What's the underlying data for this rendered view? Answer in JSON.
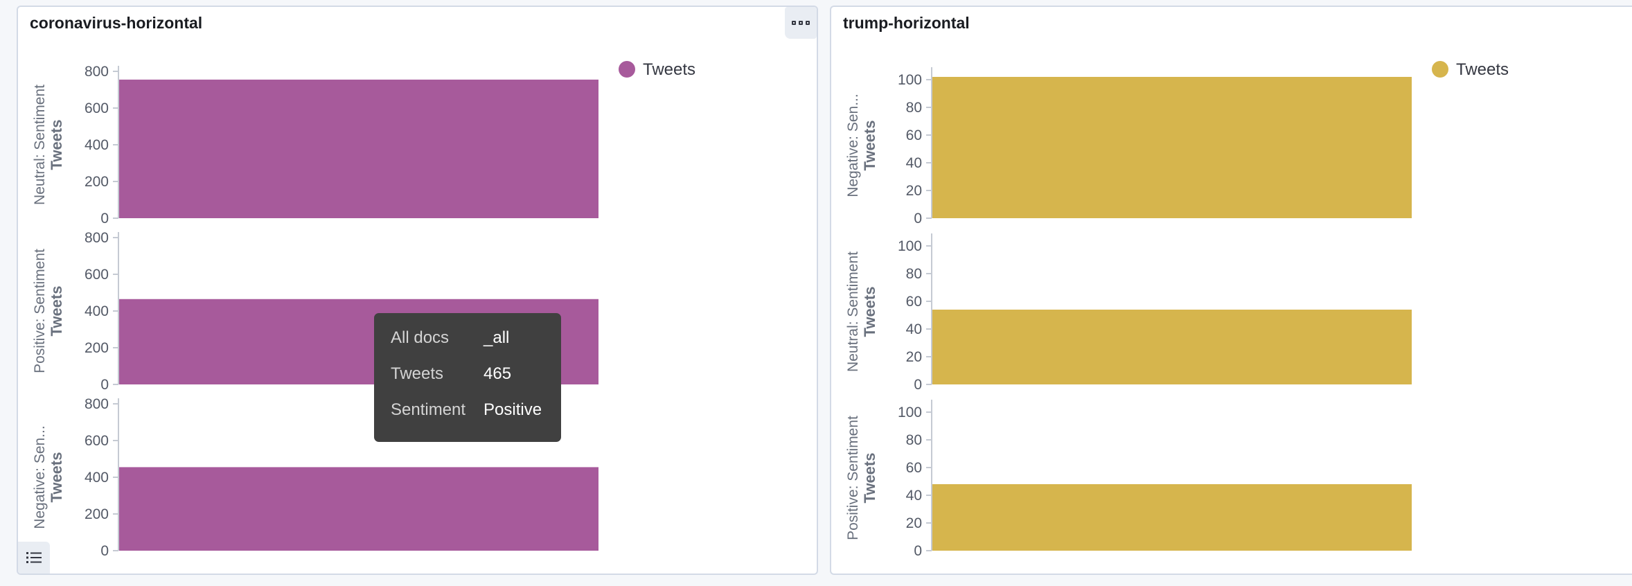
{
  "panels": [
    {
      "title": "coronavirus-horizontal",
      "legend_label": "Tweets",
      "color": "#a75a9b",
      "chart_data": {
        "type": "bar",
        "orientation": "small-multiples",
        "value_axis_title": "Tweets",
        "ylim": [
          0,
          800
        ],
        "ticks": [
          0,
          200,
          400,
          600,
          800
        ],
        "rows": [
          {
            "label": "Neutral: Sentiment",
            "value": 755
          },
          {
            "label": "Positive: Sentiment",
            "value": 465
          },
          {
            "label": "Negative: Sen...",
            "value": 455
          }
        ],
        "legend": {
          "position": "top-right",
          "entries": [
            "Tweets"
          ]
        }
      }
    },
    {
      "title": "trump-horizontal",
      "legend_label": "Tweets",
      "color": "#d6b54d",
      "chart_data": {
        "type": "bar",
        "orientation": "small-multiples",
        "value_axis_title": "Tweets",
        "ylim": [
          0,
          105
        ],
        "ticks": [
          0,
          20,
          40,
          60,
          80,
          100
        ],
        "rows": [
          {
            "label": "Negative: Sen...",
            "value": 102
          },
          {
            "label": "Neutral: Sentiment",
            "value": 54
          },
          {
            "label": "Positive: Sentiment",
            "value": 48
          }
        ],
        "legend": {
          "position": "top-right",
          "entries": [
            "Tweets"
          ]
        }
      }
    }
  ],
  "tooltip": {
    "rows": [
      {
        "key": "All docs",
        "value": "_all"
      },
      {
        "key": "Tweets",
        "value": "465"
      },
      {
        "key": "Sentiment",
        "value": "Positive"
      }
    ]
  },
  "icons": {
    "panel_menu": "options-icon",
    "legend_toggle": "list-icon"
  }
}
